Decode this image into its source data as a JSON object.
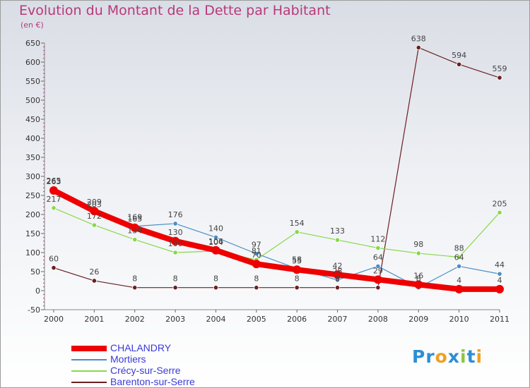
{
  "chart_data": {
    "type": "line",
    "title": "Evolution du Montant de la Dette par Habitant",
    "unit_label": "(en €)",
    "x": [
      "2000",
      "2001",
      "2002",
      "2003",
      "2004",
      "2005",
      "2006",
      "2007",
      "2008",
      "2009",
      "2010",
      "2011"
    ],
    "ylim": [
      -50,
      650
    ],
    "yticks": [
      -50,
      0,
      50,
      100,
      150,
      200,
      250,
      300,
      350,
      400,
      450,
      500,
      550,
      600,
      650
    ],
    "grid": false,
    "legend_position": "bottom-left",
    "series": [
      {
        "name": "Barenton-sur-Serre",
        "color": "#6b1f20",
        "values": [
          60,
          26,
          8,
          8,
          8,
          8,
          8,
          8,
          8,
          638,
          594,
          559
        ],
        "labels": [
          "60",
          "26",
          "8",
          "8",
          "8",
          "8",
          "8",
          "8",
          "",
          "638",
          "594",
          "559"
        ]
      },
      {
        "name": "Crécy-sur-Serre",
        "color": "#88d84a",
        "values": [
          217,
          172,
          134,
          100,
          104,
          81,
          154,
          133,
          112,
          98,
          88,
          205
        ],
        "labels": [
          "217",
          "172",
          "134",
          "100",
          "104",
          "81",
          "154",
          "133",
          "112",
          "98",
          "88",
          "205"
        ]
      },
      {
        "name": "Mortiers",
        "color": "#4a8ec6",
        "values": [
          265,
          203,
          169,
          176,
          140,
          97,
          58,
          28,
          64,
          8,
          64,
          44
        ],
        "labels": [
          "265",
          "203",
          "169",
          "176",
          "140",
          "97",
          "58",
          "28",
          "64",
          "8",
          "64",
          "44"
        ]
      },
      {
        "name": "CHALANDRY",
        "color": "#ee0000",
        "values": [
          263,
          209,
          165,
          130,
          106,
          70,
          55,
          42,
          29,
          16,
          4,
          4
        ],
        "labels": [
          "263",
          "209",
          "165",
          "130",
          "106",
          "70",
          "55",
          "42",
          "29",
          "16",
          "4",
          "4"
        ]
      }
    ],
    "legend": [
      "CHALANDRY",
      "Mortiers",
      "Crécy-sur-Serre",
      "Barenton-sur-Serre"
    ]
  },
  "legend_text_color": "#3a3ad8",
  "logo": {
    "letters": [
      "P",
      "r",
      "o",
      "x",
      "i",
      "t",
      "i"
    ],
    "colors": [
      "#2b8fd6",
      "#2b8fd6",
      "#f0a020",
      "#2b8fd6",
      "#8cc63f",
      "#2b8fd6",
      "#f0a020"
    ]
  }
}
